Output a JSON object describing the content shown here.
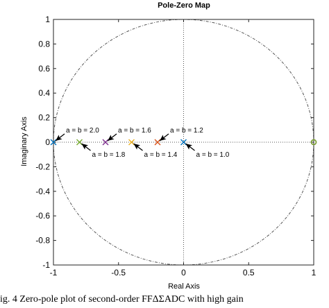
{
  "chart_data": {
    "type": "scatter",
    "title": "Pole-Zero Map",
    "xlabel": "Real Axis",
    "ylabel": "Imaginary Axis",
    "xlim": [
      -1,
      1
    ],
    "ylim": [
      -1,
      1
    ],
    "xticks": [
      "-1",
      "-0.5",
      "0",
      "0.5",
      "1"
    ],
    "yticks": [
      "1",
      "0.8",
      "0.6",
      "0.4",
      "0.2",
      "0",
      "-0.2",
      "-0.4",
      "-0.6",
      "-0.8",
      "-1"
    ],
    "grid": false,
    "unit_circle": true,
    "axes_crosshair": true,
    "series": [
      {
        "color": "#0072bd",
        "poles": [
          [
            -1.0,
            0
          ],
          [
            0.0,
            0
          ]
        ],
        "zeros": [
          [
            1.0,
            0
          ]
        ]
      },
      {
        "color": "#d95319",
        "poles": [
          [
            -0.2,
            0
          ]
        ],
        "zeros": [
          [
            1.0,
            0
          ]
        ]
      },
      {
        "color": "#edb120",
        "poles": [
          [
            -0.4,
            0
          ]
        ],
        "zeros": [
          [
            1.0,
            0
          ]
        ]
      },
      {
        "color": "#7e2f8e",
        "poles": [
          [
            -0.6,
            0
          ]
        ],
        "zeros": [
          [
            1.0,
            0
          ]
        ]
      },
      {
        "color": "#77ac30",
        "poles": [
          [
            -0.8,
            0
          ]
        ],
        "zeros": [
          [
            1.0,
            0
          ]
        ]
      }
    ],
    "annotations": [
      {
        "text": "a = b = 2.0",
        "x": -1.0,
        "y": 0,
        "placement": "above"
      },
      {
        "text": "a = b = 1.8",
        "x": -0.8,
        "y": 0,
        "placement": "below"
      },
      {
        "text": "a = b = 1.6",
        "x": -0.6,
        "y": 0,
        "placement": "above"
      },
      {
        "text": "a = b = 1.4",
        "x": -0.4,
        "y": 0,
        "placement": "below"
      },
      {
        "text": "a = b = 1.2",
        "x": -0.2,
        "y": 0,
        "placement": "above"
      },
      {
        "text": "a = b = 1.0",
        "x": 0.0,
        "y": 0,
        "placement": "below"
      }
    ]
  },
  "caption": "ig. 4     Zero-pole plot of second-order FFΔΣADC with high gain"
}
